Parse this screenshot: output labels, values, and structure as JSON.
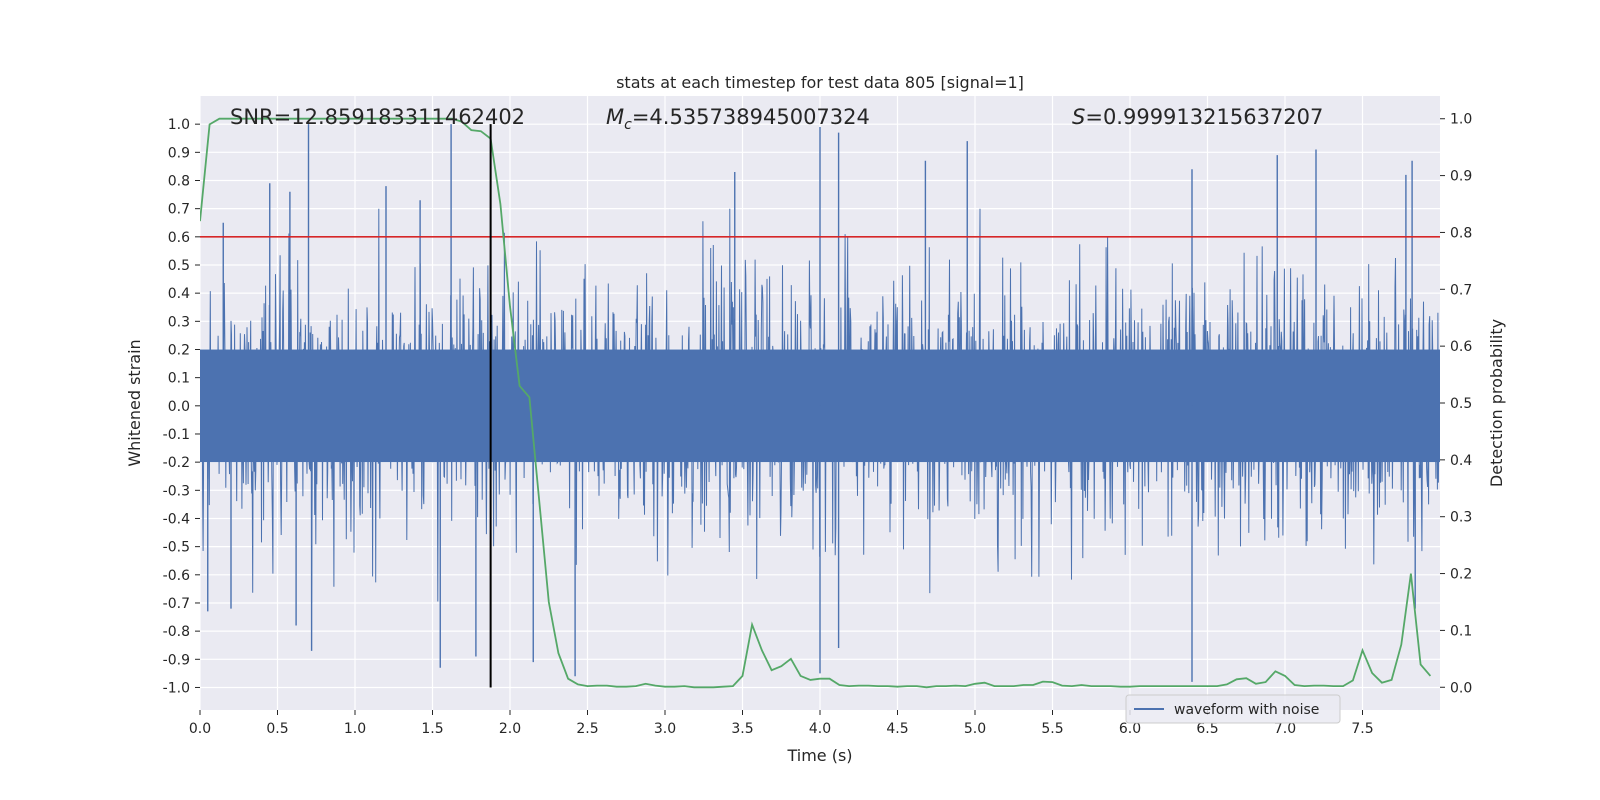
{
  "chart_data": {
    "type": "line",
    "title": "stats at each timestep for test data 805 [signal=1]",
    "xlabel": "Time (s)",
    "ylabel_left": "Whitened strain",
    "ylabel_right": "Detection probability",
    "xlim": [
      0.0,
      8.0
    ],
    "ylim_left": [
      -1.08,
      1.1
    ],
    "ylim_right": [
      -0.04,
      1.04
    ],
    "x_ticks": [
      "0.0",
      "0.5",
      "1.0",
      "1.5",
      "2.0",
      "2.5",
      "3.0",
      "3.5",
      "4.0",
      "4.5",
      "5.0",
      "5.5",
      "6.0",
      "6.5",
      "7.0",
      "7.5"
    ],
    "y_ticks_left": [
      "1.0",
      "0.9",
      "0.8",
      "0.7",
      "0.6",
      "0.5",
      "0.4",
      "0.3",
      "0.2",
      "0.1",
      "0.0",
      "-0.1",
      "-0.2",
      "-0.3",
      "-0.4",
      "-0.5",
      "-0.6",
      "-0.7",
      "-0.8",
      "-0.9",
      "-1.0"
    ],
    "y_ticks_right": [
      "1.0",
      "0.9",
      "0.8",
      "0.7",
      "0.6",
      "0.5",
      "0.4",
      "0.3",
      "0.2",
      "0.1",
      "0.0"
    ],
    "grid": true,
    "legend_position": "lower-right",
    "annotations": {
      "snr": "SNR=12.859183311462402",
      "mc_symbol": "M",
      "mc_sub": "c",
      "mc_value": "=4.535738945007324",
      "s_symbol": "S",
      "s_value": "=0.999913215637207"
    },
    "threshold_line": {
      "axis": "left",
      "y": 0.6,
      "color": "#d62728"
    },
    "marker_line": {
      "x": 1.875,
      "y_from": -1.0,
      "y_to": 1.0,
      "color": "#000000"
    },
    "series": [
      {
        "name": "waveform with noise",
        "axis": "left",
        "color": "#4c72b0",
        "sample_rate": 2048,
        "envelope_peaks": [
          {
            "x": 0.05,
            "y": -0.73
          },
          {
            "x": 0.15,
            "y": 0.65
          },
          {
            "x": 0.2,
            "y": -0.72
          },
          {
            "x": 0.45,
            "y": 0.79
          },
          {
            "x": 0.58,
            "y": 0.76
          },
          {
            "x": 0.62,
            "y": -0.78
          },
          {
            "x": 0.7,
            "y": 1.0
          },
          {
            "x": 0.72,
            "y": -0.87
          },
          {
            "x": 1.2,
            "y": 0.78
          },
          {
            "x": 1.42,
            "y": 0.73
          },
          {
            "x": 1.55,
            "y": -0.93
          },
          {
            "x": 1.62,
            "y": 1.0
          },
          {
            "x": 1.78,
            "y": -0.89
          },
          {
            "x": 2.15,
            "y": -0.91
          },
          {
            "x": 2.42,
            "y": -0.96
          },
          {
            "x": 3.45,
            "y": 0.83
          },
          {
            "x": 4.0,
            "y": 0.99
          },
          {
            "x": 4.0,
            "y": -0.95
          },
          {
            "x": 4.12,
            "y": 0.97
          },
          {
            "x": 4.12,
            "y": -0.86
          },
          {
            "x": 4.68,
            "y": 0.87
          },
          {
            "x": 4.95,
            "y": 0.94
          },
          {
            "x": 6.4,
            "y": 0.84
          },
          {
            "x": 6.4,
            "y": -0.98
          },
          {
            "x": 6.95,
            "y": 0.89
          },
          {
            "x": 7.2,
            "y": 0.91
          },
          {
            "x": 7.78,
            "y": 0.82
          },
          {
            "x": 7.82,
            "y": 0.87
          },
          {
            "x": 7.84,
            "y": -0.72
          }
        ]
      },
      {
        "name": "detection probability",
        "axis": "right",
        "color": "#55a868",
        "x": [
          0.0,
          0.062,
          0.125,
          0.188,
          0.25,
          0.312,
          0.375,
          0.438,
          0.5,
          0.562,
          0.625,
          0.688,
          0.75,
          0.812,
          0.875,
          0.938,
          1.0,
          1.062,
          1.125,
          1.188,
          1.25,
          1.312,
          1.375,
          1.438,
          1.5,
          1.562,
          1.625,
          1.688,
          1.75,
          1.812,
          1.875,
          1.938,
          2.0,
          2.062,
          2.125,
          2.188,
          2.25,
          2.312,
          2.375,
          2.438,
          2.5,
          2.562,
          2.625,
          2.688,
          2.75,
          2.812,
          2.875,
          2.938,
          3.0,
          3.062,
          3.125,
          3.188,
          3.25,
          3.312,
          3.375,
          3.438,
          3.5,
          3.562,
          3.625,
          3.688,
          3.75,
          3.812,
          3.875,
          3.938,
          4.0,
          4.062,
          4.125,
          4.188,
          4.25,
          4.312,
          4.375,
          4.438,
          4.5,
          4.562,
          4.625,
          4.688,
          4.75,
          4.812,
          4.875,
          4.938,
          5.0,
          5.062,
          5.125,
          5.188,
          5.25,
          5.312,
          5.375,
          5.438,
          5.5,
          5.562,
          5.625,
          5.688,
          5.75,
          5.812,
          5.875,
          5.938,
          6.0,
          6.062,
          6.125,
          6.188,
          6.25,
          6.312,
          6.375,
          6.438,
          6.5,
          6.562,
          6.625,
          6.688,
          6.75,
          6.812,
          6.875,
          6.938,
          7.0,
          7.062,
          7.125,
          7.188,
          7.25,
          7.312,
          7.375,
          7.438,
          7.5,
          7.562,
          7.625,
          7.688,
          7.75,
          7.812,
          7.875,
          7.938
        ],
        "y": [
          0.82,
          0.99,
          1.0,
          1.0,
          1.0,
          1.0,
          1.0,
          1.0,
          1.0,
          1.0,
          1.0,
          1.0,
          1.0,
          1.0,
          1.0,
          1.0,
          1.0,
          1.0,
          1.0,
          1.0,
          1.0,
          1.0,
          1.0,
          1.0,
          1.0,
          1.0,
          1.0,
          0.995,
          0.98,
          0.978,
          0.965,
          0.85,
          0.67,
          0.53,
          0.51,
          0.33,
          0.15,
          0.06,
          0.015,
          0.005,
          0.002,
          0.003,
          0.003,
          0.001,
          0.001,
          0.002,
          0.006,
          0.003,
          0.001,
          0.001,
          0.002,
          0.0,
          0.0,
          0.0,
          0.001,
          0.002,
          0.02,
          0.11,
          0.065,
          0.03,
          0.037,
          0.05,
          0.02,
          0.013,
          0.015,
          0.015,
          0.004,
          0.002,
          0.003,
          0.003,
          0.002,
          0.002,
          0.001,
          0.002,
          0.002,
          0.0,
          0.002,
          0.002,
          0.003,
          0.002,
          0.006,
          0.008,
          0.002,
          0.002,
          0.002,
          0.004,
          0.004,
          0.01,
          0.009,
          0.003,
          0.002,
          0.004,
          0.002,
          0.002,
          0.002,
          0.001,
          0.001,
          0.002,
          0.002,
          0.002,
          0.002,
          0.002,
          0.002,
          0.002,
          0.002,
          0.002,
          0.005,
          0.014,
          0.016,
          0.006,
          0.009,
          0.028,
          0.02,
          0.004,
          0.002,
          0.003,
          0.003,
          0.002,
          0.002,
          0.012,
          0.065,
          0.025,
          0.008,
          0.013,
          0.075,
          0.2,
          0.04,
          0.02
        ]
      }
    ]
  }
}
